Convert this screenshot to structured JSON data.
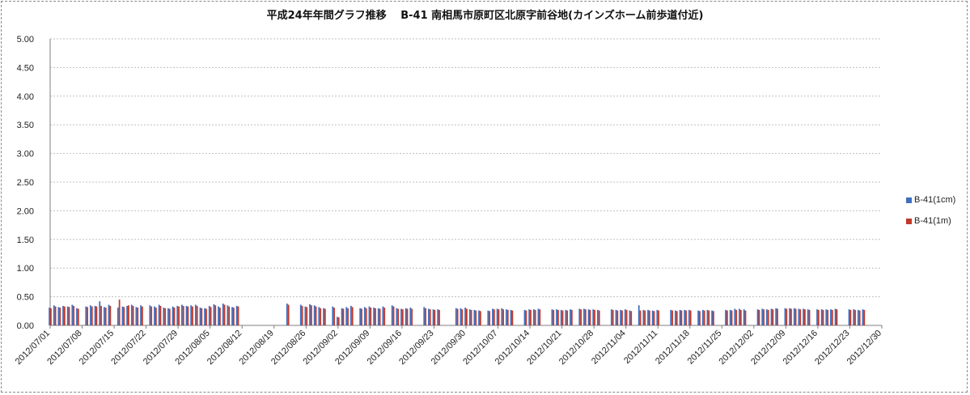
{
  "chart_data": {
    "type": "bar",
    "title": "平成24年年間グラフ推移　 B-41 南相馬市原町区北原字前谷地(カインズホーム前歩道付近)",
    "xlabel": "",
    "ylabel": "",
    "ylim": [
      0,
      5
    ],
    "yticks": [
      "5.00",
      "4.50",
      "4.00",
      "3.50",
      "3.00",
      "2.50",
      "2.00",
      "1.50",
      "1.00",
      "0.50",
      "0.00"
    ],
    "grid": true,
    "legend_position": "right",
    "x_tick_labels": [
      "2012/07/01",
      "2012/07/08",
      "2012/07/15",
      "2012/07/22",
      "2012/07/29",
      "2012/08/05",
      "2012/08/12",
      "2012/08/19",
      "2012/08/26",
      "2012/09/02",
      "2012/09/09",
      "2012/09/16",
      "2012/09/23",
      "2012/09/30",
      "2012/10/07",
      "2012/10/14",
      "2012/10/21",
      "2012/10/28",
      "2012/11/04",
      "2012/11/11",
      "2012/11/18",
      "2012/11/25",
      "2012/12/02",
      "2012/12/09",
      "2012/12/16",
      "2012/12/23",
      "2012/12/30"
    ],
    "series": [
      {
        "name": "B-41(1cm)",
        "color": "#3f6fbf",
        "values": [
          0.31,
          0.35,
          0.32,
          0.34,
          0.33,
          0.36,
          0.3,
          null,
          0.33,
          0.35,
          0.34,
          0.42,
          0.32,
          0.36,
          null,
          0.31,
          0.33,
          0.34,
          0.36,
          0.32,
          0.35,
          null,
          0.35,
          0.33,
          0.36,
          0.31,
          0.3,
          0.33,
          0.34,
          0.36,
          0.34,
          0.35,
          0.36,
          0.31,
          0.3,
          0.34,
          0.37,
          0.33,
          0.38,
          0.35,
          0.32,
          0.34,
          null,
          null,
          null,
          null,
          null,
          null,
          null,
          null,
          null,
          null,
          0.38,
          null,
          null,
          0.36,
          0.33,
          0.37,
          0.35,
          0.32,
          0.3,
          null,
          0.33,
          0.15,
          0.3,
          0.32,
          0.34,
          null,
          0.3,
          0.32,
          0.33,
          0.31,
          0.3,
          0.33,
          null,
          0.35,
          0.3,
          0.29,
          0.3,
          0.31,
          null,
          null,
          0.32,
          0.29,
          0.28,
          0.28,
          null,
          null,
          null,
          0.3,
          0.3,
          0.31,
          0.28,
          0.27,
          0.26,
          null,
          0.26,
          0.29,
          0.29,
          0.3,
          0.28,
          0.27,
          null,
          null,
          0.27,
          0.28,
          0.28,
          0.29,
          null,
          null,
          0.28,
          0.28,
          0.27,
          0.27,
          0.28,
          null,
          0.29,
          0.29,
          0.28,
          0.28,
          0.27,
          null,
          null,
          0.28,
          0.27,
          0.27,
          0.28,
          0.26,
          null,
          0.35,
          0.27,
          0.27,
          0.26,
          0.27,
          null,
          null,
          0.27,
          0.26,
          0.27,
          0.27,
          0.27,
          null,
          0.26,
          0.27,
          0.27,
          0.26,
          null,
          null,
          0.27,
          0.27,
          0.29,
          0.29,
          0.28,
          null,
          null,
          0.28,
          0.29,
          0.28,
          0.29,
          0.3,
          null,
          0.3,
          0.3,
          0.3,
          0.29,
          0.29,
          0.28,
          null,
          0.28,
          0.28,
          0.28,
          0.28,
          0.29,
          null,
          null,
          0.28,
          0.28,
          0.27,
          0.28,
          null,
          null,
          null,
          null
        ],
        "value_note": "daily values 2012-07-01 to 2012-12-30 (estimated from bars; null = no bar)"
      },
      {
        "name": "B-41(1m)",
        "color": "#c0392b",
        "values": [
          0.3,
          0.33,
          0.31,
          0.33,
          0.32,
          0.34,
          0.29,
          null,
          0.32,
          0.33,
          0.33,
          0.34,
          0.31,
          0.34,
          null,
          0.45,
          0.32,
          0.35,
          0.34,
          0.31,
          0.33,
          null,
          0.33,
          0.31,
          0.34,
          0.3,
          0.29,
          0.31,
          0.33,
          0.34,
          0.33,
          0.33,
          0.34,
          0.3,
          0.29,
          0.32,
          0.35,
          0.31,
          0.36,
          0.33,
          0.31,
          0.33,
          null,
          null,
          null,
          null,
          null,
          null,
          null,
          null,
          null,
          null,
          0.36,
          null,
          null,
          0.34,
          0.32,
          0.35,
          0.33,
          0.3,
          0.29,
          null,
          0.31,
          0.14,
          0.29,
          0.3,
          0.32,
          null,
          0.29,
          0.3,
          0.31,
          0.3,
          0.29,
          0.31,
          null,
          0.33,
          0.29,
          0.28,
          0.29,
          0.29,
          null,
          null,
          0.3,
          0.28,
          0.27,
          0.27,
          null,
          null,
          null,
          0.29,
          0.28,
          0.29,
          0.27,
          0.26,
          0.25,
          null,
          0.25,
          0.28,
          0.28,
          0.28,
          0.27,
          0.26,
          null,
          null,
          0.26,
          0.27,
          0.27,
          0.28,
          null,
          null,
          0.27,
          0.27,
          0.26,
          0.26,
          0.27,
          null,
          0.28,
          0.28,
          0.27,
          0.27,
          0.26,
          null,
          null,
          0.27,
          0.26,
          0.26,
          0.27,
          0.25,
          null,
          0.26,
          0.26,
          0.26,
          0.25,
          0.26,
          null,
          null,
          0.26,
          0.25,
          0.26,
          0.26,
          0.26,
          null,
          0.25,
          0.26,
          0.26,
          0.25,
          null,
          null,
          0.26,
          0.26,
          0.27,
          0.27,
          0.26,
          null,
          null,
          0.27,
          0.28,
          0.27,
          0.28,
          0.29,
          null,
          0.29,
          0.29,
          0.29,
          0.28,
          0.28,
          0.27,
          null,
          0.27,
          0.27,
          0.27,
          0.27,
          0.28,
          null,
          null,
          0.27,
          0.27,
          0.26,
          0.27,
          null,
          null,
          null,
          null
        ]
      }
    ]
  }
}
